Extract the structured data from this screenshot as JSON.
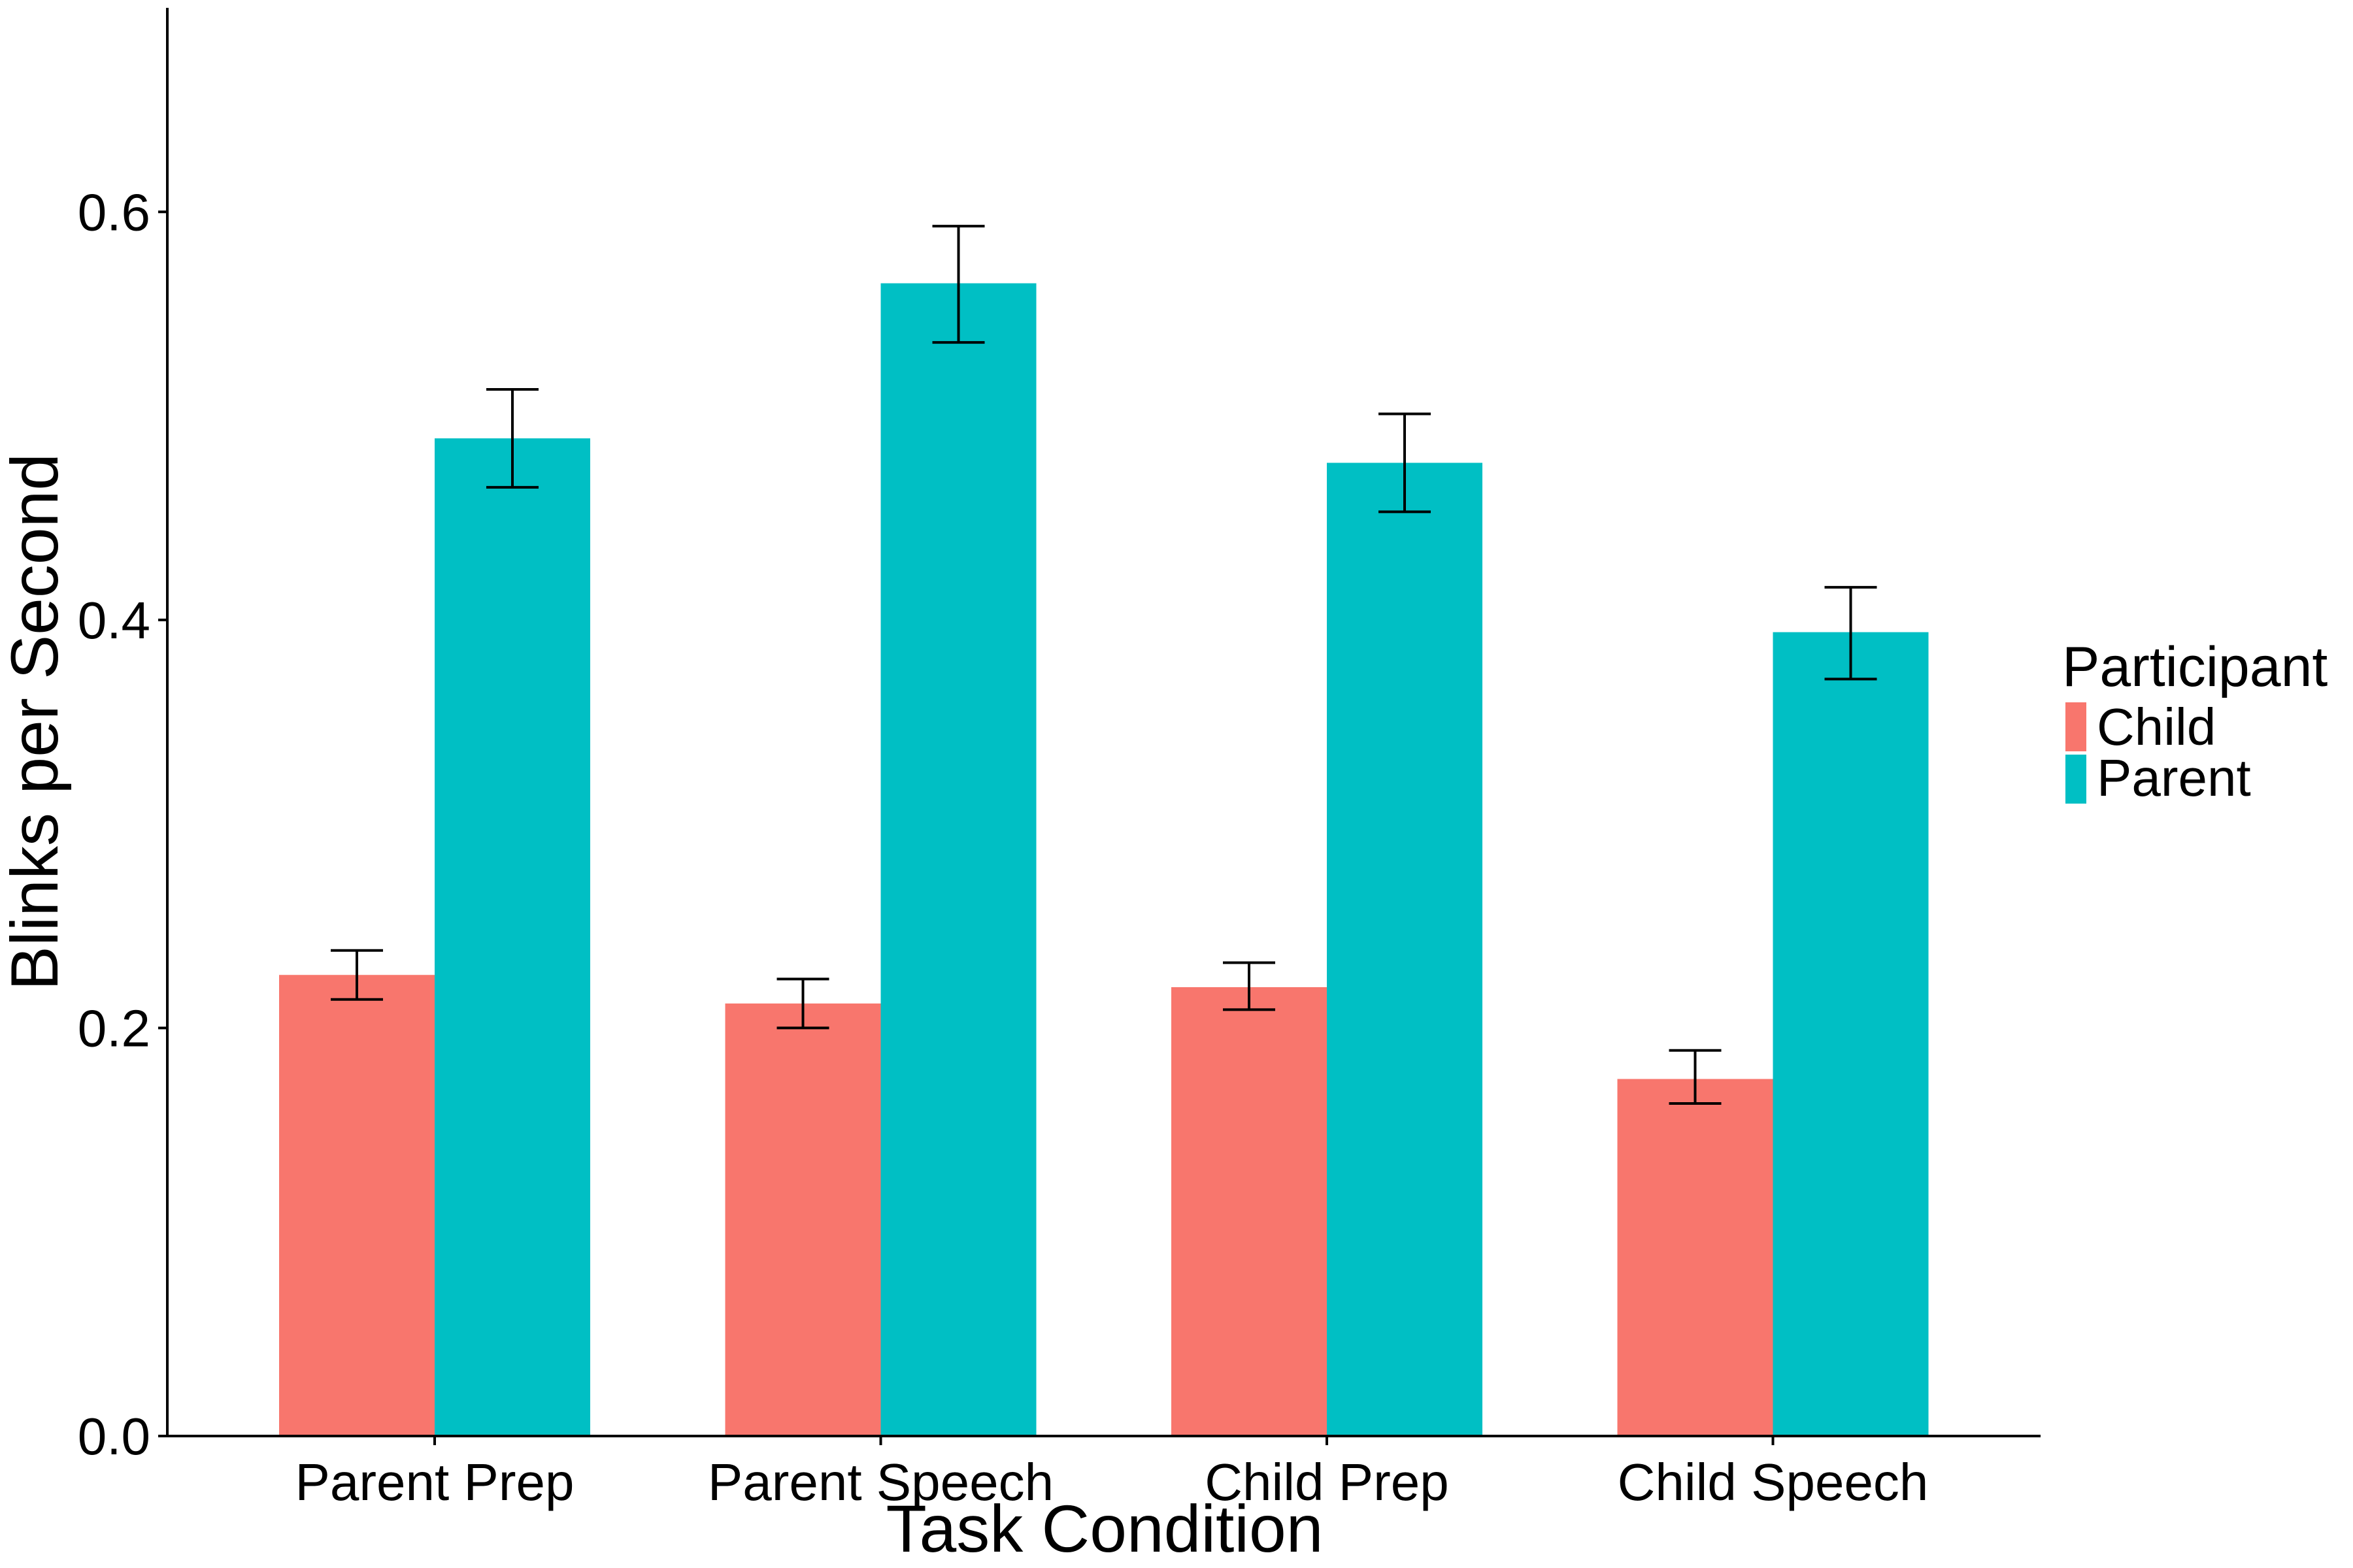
{
  "chart_data": {
    "type": "bar",
    "xlabel": "Task Condition",
    "ylabel": "Blinks per Second",
    "categories": [
      "Parent Prep",
      "Parent Speech",
      "Child Prep",
      "Child Speech"
    ],
    "series": [
      {
        "name": "Child",
        "color": "#F8766D",
        "values": [
          0.226,
          0.212,
          0.22,
          0.175
        ],
        "error_low": [
          0.214,
          0.2,
          0.209,
          0.163
        ],
        "error_high": [
          0.238,
          0.224,
          0.232,
          0.189
        ]
      },
      {
        "name": "Parent",
        "color": "#00BFC4",
        "values": [
          0.489,
          0.565,
          0.477,
          0.394
        ],
        "error_low": [
          0.465,
          0.536,
          0.453,
          0.371
        ],
        "error_high": [
          0.513,
          0.593,
          0.501,
          0.416
        ]
      }
    ],
    "yticks": [
      "0.0",
      "0.2",
      "0.4",
      "0.6"
    ],
    "ylim": [
      0,
      0.7
    ],
    "legend": {
      "title": "Participant",
      "position": "right"
    },
    "grid": false
  }
}
